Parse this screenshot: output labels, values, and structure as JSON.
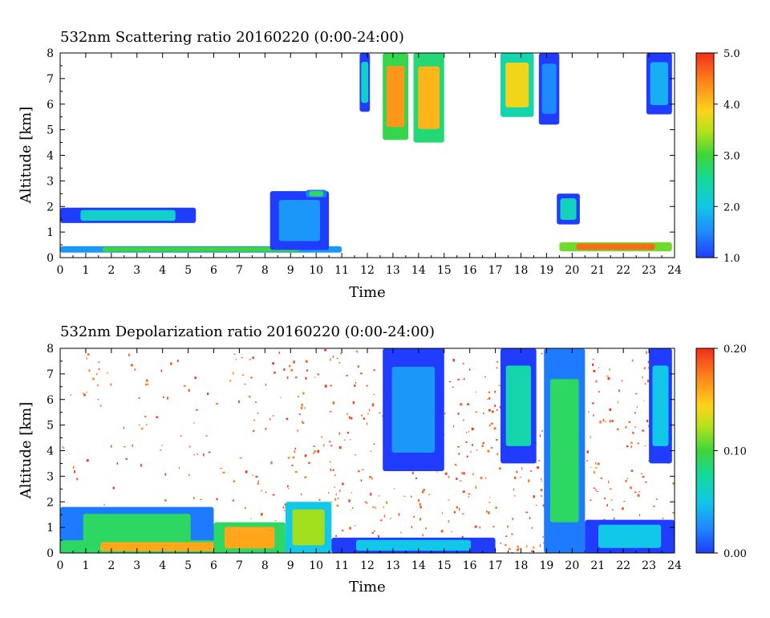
{
  "chart_data": [
    {
      "type": "heatmap",
      "title": "532nm Scattering ratio  20160220 (0:00-24:00)",
      "xlabel": "Time",
      "ylabel": "Altitude [km]",
      "xlim": [
        0,
        24
      ],
      "ylim": [
        0,
        8
      ],
      "x_ticks": [
        "0",
        "1",
        "2",
        "3",
        "4",
        "5",
        "6",
        "7",
        "8",
        "9",
        "10",
        "11",
        "12",
        "13",
        "14",
        "15",
        "16",
        "17",
        "18",
        "19",
        "20",
        "21",
        "22",
        "23",
        "24"
      ],
      "y_ticks": [
        "0",
        "1",
        "2",
        "3",
        "4",
        "5",
        "6",
        "7",
        "8"
      ],
      "colorbar": {
        "min": 1.0,
        "max": 5.0,
        "ticks": [
          "1.0",
          "2.0",
          "3.0",
          "4.0",
          "5.0"
        ]
      },
      "features": [
        {
          "t0": 0.0,
          "t1": 11.0,
          "base_km": 0.2,
          "top_km": 0.45,
          "value": 3.0
        },
        {
          "t0": 0.0,
          "t1": 5.3,
          "base_km": 1.35,
          "top_km": 1.95,
          "value": 2.2
        },
        {
          "t0": 8.2,
          "t1": 10.5,
          "base_km": 0.3,
          "top_km": 2.6,
          "value": 1.6
        },
        {
          "t0": 9.6,
          "t1": 10.4,
          "base_km": 2.35,
          "top_km": 2.65,
          "value": 2.8
        },
        {
          "t0": 11.7,
          "t1": 12.1,
          "base_km": 5.7,
          "top_km": 8.0,
          "value": 2.2
        },
        {
          "t0": 12.6,
          "t1": 13.6,
          "base_km": 4.6,
          "top_km": 8.0,
          "value": 4.3
        },
        {
          "t0": 13.8,
          "t1": 15.0,
          "base_km": 4.5,
          "top_km": 8.0,
          "value": 4.1
        },
        {
          "t0": 17.2,
          "t1": 18.5,
          "base_km": 5.5,
          "top_km": 8.0,
          "value": 3.8
        },
        {
          "t0": 18.7,
          "t1": 19.5,
          "base_km": 5.2,
          "top_km": 8.0,
          "value": 1.5
        },
        {
          "t0": 22.9,
          "t1": 23.9,
          "base_km": 5.6,
          "top_km": 8.0,
          "value": 1.8
        },
        {
          "t0": 19.4,
          "t1": 20.3,
          "base_km": 1.3,
          "top_km": 2.5,
          "value": 2.3
        },
        {
          "t0": 19.5,
          "t1": 23.9,
          "base_km": 0.25,
          "top_km": 0.6,
          "value": 4.6
        }
      ]
    },
    {
      "type": "heatmap",
      "title": "532nm Depolarization ratio  20160220 (0:00-24:00)",
      "xlabel": "Time",
      "ylabel": "Altitude [km]",
      "xlim": [
        0,
        24
      ],
      "ylim": [
        0,
        8
      ],
      "x_ticks": [
        "0",
        "1",
        "2",
        "3",
        "4",
        "5",
        "6",
        "7",
        "8",
        "9",
        "10",
        "11",
        "12",
        "13",
        "14",
        "15",
        "16",
        "17",
        "18",
        "19",
        "20",
        "21",
        "22",
        "23",
        "24"
      ],
      "y_ticks": [
        "0",
        "1",
        "2",
        "3",
        "4",
        "5",
        "6",
        "7",
        "8"
      ],
      "colorbar": {
        "min": 0.0,
        "max": 0.2,
        "ticks": [
          "0.00",
          "0.10",
          "0.20"
        ]
      },
      "features": [
        {
          "t0": 0.0,
          "t1": 6.0,
          "base_km": 0.0,
          "top_km": 1.8,
          "value": 0.09
        },
        {
          "t0": 0.0,
          "t1": 10.5,
          "base_km": 0.0,
          "top_km": 0.5,
          "value": 0.16
        },
        {
          "t0": 6.0,
          "t1": 8.8,
          "base_km": 0.0,
          "top_km": 1.2,
          "value": 0.16
        },
        {
          "t0": 8.8,
          "t1": 10.6,
          "base_km": 0.0,
          "top_km": 2.0,
          "value": 0.12
        },
        {
          "t0": 10.6,
          "t1": 17.0,
          "base_km": 0.0,
          "top_km": 0.6,
          "value": 0.05
        },
        {
          "t0": 12.6,
          "t1": 15.0,
          "base_km": 3.2,
          "top_km": 8.0,
          "value": 0.03
        },
        {
          "t0": 17.2,
          "t1": 18.6,
          "base_km": 3.5,
          "top_km": 8.0,
          "value": 0.07
        },
        {
          "t0": 18.9,
          "t1": 20.5,
          "base_km": 0.0,
          "top_km": 8.0,
          "value": 0.09
        },
        {
          "t0": 20.5,
          "t1": 24.0,
          "base_km": 0.0,
          "top_km": 1.3,
          "value": 0.05
        },
        {
          "t0": 23.0,
          "t1": 23.9,
          "base_km": 3.5,
          "top_km": 8.0,
          "value": 0.05
        }
      ]
    }
  ]
}
